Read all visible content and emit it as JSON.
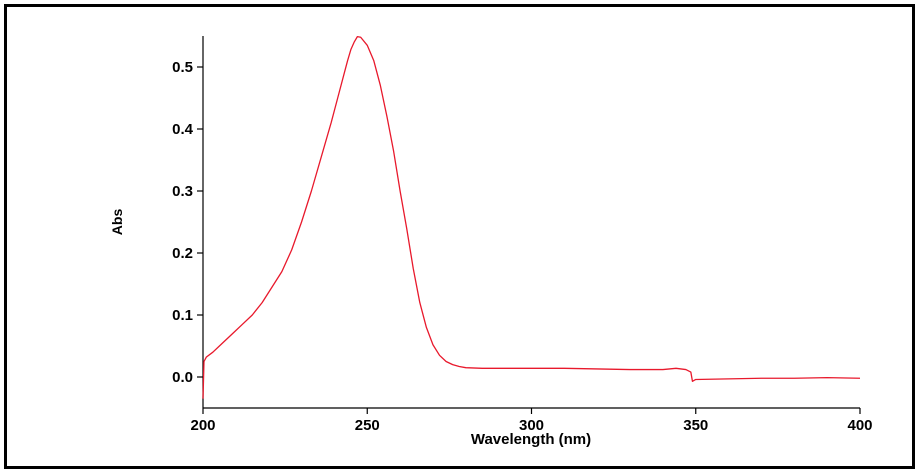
{
  "chart_data": {
    "type": "line",
    "title": "",
    "xlabel": "Wavelength (nm)",
    "ylabel": "Abs",
    "xlim": [
      200,
      400
    ],
    "ylim": [
      -0.05,
      0.55
    ],
    "xticks": [
      200,
      250,
      300,
      350,
      400
    ],
    "xtick_labels": [
      "200",
      "250",
      "300",
      "350",
      "400"
    ],
    "yticks": [
      0.0,
      0.1,
      0.2,
      0.3,
      0.4,
      0.5
    ],
    "ytick_labels": [
      "0.0",
      "0.1",
      "0.2",
      "0.3",
      "0.4",
      "0.5"
    ],
    "grid": false,
    "colors": {
      "series": "#e8192c",
      "axes": "#000000"
    },
    "series": [
      {
        "x": [
          200,
          200.3,
          201,
          203,
          206,
          209,
          212,
          215,
          218,
          221,
          224,
          227,
          230,
          233,
          236,
          239,
          241,
          243,
          244,
          245,
          246,
          247,
          248,
          250,
          252,
          254,
          256,
          258,
          260,
          262,
          264,
          266,
          268,
          270,
          272,
          274,
          276,
          278,
          280,
          285,
          290,
          300,
          310,
          320,
          330,
          340,
          344,
          347,
          348.5,
          349,
          350,
          360,
          370,
          380,
          390,
          400
        ],
        "y": [
          -0.035,
          0.025,
          0.032,
          0.04,
          0.055,
          0.07,
          0.085,
          0.1,
          0.12,
          0.145,
          0.17,
          0.205,
          0.25,
          0.3,
          0.355,
          0.41,
          0.45,
          0.49,
          0.51,
          0.528,
          0.54,
          0.549,
          0.548,
          0.535,
          0.51,
          0.47,
          0.42,
          0.365,
          0.3,
          0.24,
          0.175,
          0.12,
          0.08,
          0.052,
          0.035,
          0.025,
          0.02,
          0.017,
          0.015,
          0.014,
          0.014,
          0.014,
          0.014,
          0.013,
          0.012,
          0.012,
          0.014,
          0.012,
          0.008,
          -0.007,
          -0.004,
          -0.003,
          -0.002,
          -0.002,
          -0.001,
          -0.002
        ]
      }
    ]
  }
}
